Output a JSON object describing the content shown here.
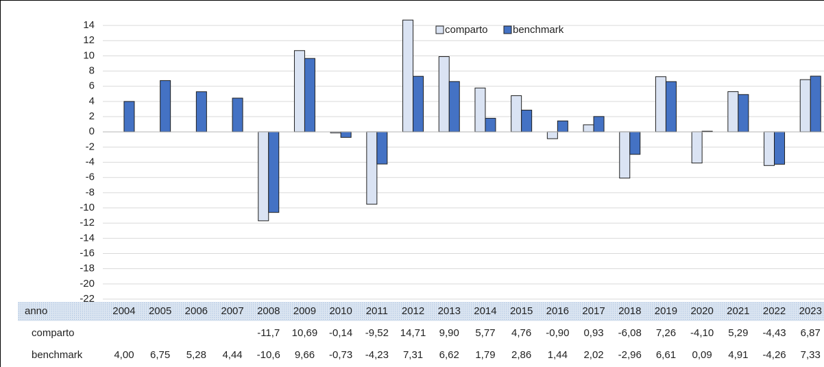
{
  "chart_data": {
    "type": "bar",
    "categories_label": "anno",
    "categories": [
      "2004",
      "2005",
      "2006",
      "2007",
      "2008",
      "2009",
      "2010",
      "2011",
      "2012",
      "2013",
      "2014",
      "2015",
      "2016",
      "2017",
      "2018",
      "2019",
      "2020",
      "2021",
      "2022",
      "2023"
    ],
    "series": [
      {
        "name": "comparto",
        "color": "#dae3f3",
        "values": [
          null,
          null,
          null,
          null,
          -11.7,
          10.69,
          -0.14,
          -9.52,
          14.71,
          9.9,
          5.77,
          4.76,
          -0.9,
          0.93,
          -6.08,
          7.26,
          -4.1,
          5.29,
          -4.43,
          6.87
        ],
        "value_labels": [
          null,
          null,
          null,
          null,
          "-11,7",
          "10,69",
          "-0,14",
          "-9,52",
          "14,71",
          "9,90",
          "5,77",
          "4,76",
          "-0,90",
          "0,93",
          "-6,08",
          "7,26",
          "-4,10",
          "5,29",
          "-4,43",
          "6,87"
        ]
      },
      {
        "name": "benchmark",
        "color": "#4472c4",
        "values": [
          4.0,
          6.75,
          5.28,
          4.44,
          -10.6,
          9.66,
          -0.73,
          -4.23,
          7.31,
          6.62,
          1.79,
          2.86,
          1.44,
          2.02,
          -2.96,
          6.61,
          0.09,
          4.91,
          -4.26,
          7.33
        ],
        "value_labels": [
          "4,00",
          "6,75",
          "5,28",
          "4,44",
          "-10,6",
          "9,66",
          "-0,73",
          "-4,23",
          "7,31",
          "6,62",
          "1,79",
          "2,86",
          "1,44",
          "2,02",
          "-2,96",
          "6,61",
          "0,09",
          "4,91",
          "-4,26",
          "7,33"
        ]
      }
    ],
    "ylim": [
      -22,
      15
    ],
    "yticks": [
      14,
      12,
      10,
      8,
      6,
      4,
      2,
      0,
      -2,
      -4,
      -6,
      -8,
      -10,
      -12,
      -14,
      -16,
      -18,
      -20,
      -22
    ],
    "grid": true
  }
}
